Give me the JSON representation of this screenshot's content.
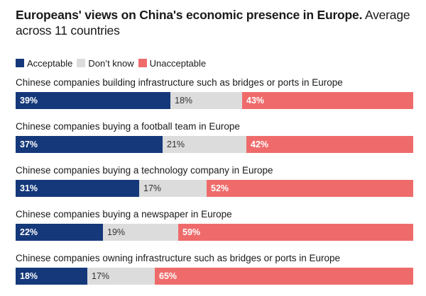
{
  "chart_data": {
    "type": "bar",
    "orientation": "horizontal-stacked-100",
    "title": "Europeans' views on China's economic presence in Europe.",
    "subtitle": "Average across 11 countries",
    "legend_position": "top-left",
    "series": [
      {
        "name": "Acceptable",
        "color": "#14387a"
      },
      {
        "name": "Don’t know",
        "color": "#dcdcdc"
      },
      {
        "name": "Unacceptable",
        "color": "#ef6b6b"
      }
    ],
    "categories": [
      "Chinese companies building infrastructure such as bridges or ports in Europe",
      "Chinese companies buying a football team in Europe",
      "Chinese companies buying a technology company in Europe",
      "Chinese companies buying a newspaper in Europe",
      "Chinese companies owning infrastructure such as bridges or ports in Europe"
    ],
    "values": [
      [
        39,
        18,
        43
      ],
      [
        37,
        21,
        42
      ],
      [
        31,
        17,
        52
      ],
      [
        22,
        19,
        59
      ],
      [
        18,
        17,
        65
      ]
    ],
    "value_suffix": "%"
  }
}
